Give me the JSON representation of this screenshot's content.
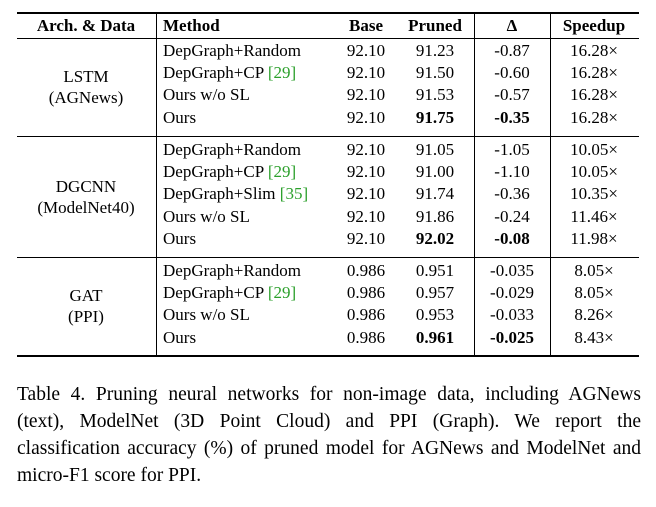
{
  "table": {
    "headers": {
      "arch": "Arch. & Data",
      "method": "Method",
      "base": "Base",
      "pruned": "Pruned",
      "delta": "Δ",
      "speedup": "Speedup"
    },
    "groups": [
      {
        "arch": "LSTM",
        "data": "(AGNews)",
        "rows": [
          {
            "method": "DepGraph+Random",
            "cite": "",
            "base": "92.10",
            "pruned": "91.23",
            "delta": "-0.87",
            "speedup": "16.28×",
            "bold": false
          },
          {
            "method": "DepGraph+CP ",
            "cite": "[29]",
            "base": "92.10",
            "pruned": "91.50",
            "delta": "-0.60",
            "speedup": "16.28×",
            "bold": false
          },
          {
            "method": "Ours w/o SL",
            "cite": "",
            "base": "92.10",
            "pruned": "91.53",
            "delta": "-0.57",
            "speedup": "16.28×",
            "bold": false
          },
          {
            "method": "Ours",
            "cite": "",
            "base": "92.10",
            "pruned": "91.75",
            "delta": "-0.35",
            "speedup": "16.28×",
            "bold": true
          }
        ]
      },
      {
        "arch": "DGCNN",
        "data": "(ModelNet40)",
        "rows": [
          {
            "method": "DepGraph+Random",
            "cite": "",
            "base": "92.10",
            "pruned": "91.05",
            "delta": "-1.05",
            "speedup": "10.05×",
            "bold": false
          },
          {
            "method": "DepGraph+CP ",
            "cite": "[29]",
            "base": "92.10",
            "pruned": "91.00",
            "delta": "-1.10",
            "speedup": "10.05×",
            "bold": false
          },
          {
            "method": "DepGraph+Slim ",
            "cite": "[35]",
            "base": "92.10",
            "pruned": "91.74",
            "delta": "-0.36",
            "speedup": "10.35×",
            "bold": false
          },
          {
            "method": "Ours w/o SL",
            "cite": "",
            "base": "92.10",
            "pruned": "91.86",
            "delta": "-0.24",
            "speedup": "11.46×",
            "bold": false
          },
          {
            "method": "Ours",
            "cite": "",
            "base": "92.10",
            "pruned": "92.02",
            "delta": "-0.08",
            "speedup": "11.98×",
            "bold": true
          }
        ]
      },
      {
        "arch": "GAT",
        "data": "(PPI)",
        "rows": [
          {
            "method": "DepGraph+Random",
            "cite": "",
            "base": "0.986",
            "pruned": "0.951",
            "delta": "-0.035",
            "speedup": "8.05×",
            "bold": false
          },
          {
            "method": "DepGraph+CP ",
            "cite": "[29]",
            "base": "0.986",
            "pruned": "0.957",
            "delta": "-0.029",
            "speedup": "8.05×",
            "bold": false
          },
          {
            "method": "Ours w/o SL",
            "cite": "",
            "base": "0.986",
            "pruned": "0.953",
            "delta": "-0.033",
            "speedup": "8.26×",
            "bold": false
          },
          {
            "method": "Ours",
            "cite": "",
            "base": "0.986",
            "pruned": "0.961",
            "delta": "-0.025",
            "speedup": "8.43×",
            "bold": true
          }
        ]
      }
    ]
  },
  "caption": "Table 4. Pruning neural networks for non-image data, including AGNews (text), ModelNet (3D Point Cloud) and PPI (Graph). We report the classification accuracy (%) of pruned model for AGNews and ModelNet and micro-F1 score for PPI.",
  "colors": {
    "text": "#000000",
    "cite": "#2ca02c",
    "background": "#ffffff"
  }
}
